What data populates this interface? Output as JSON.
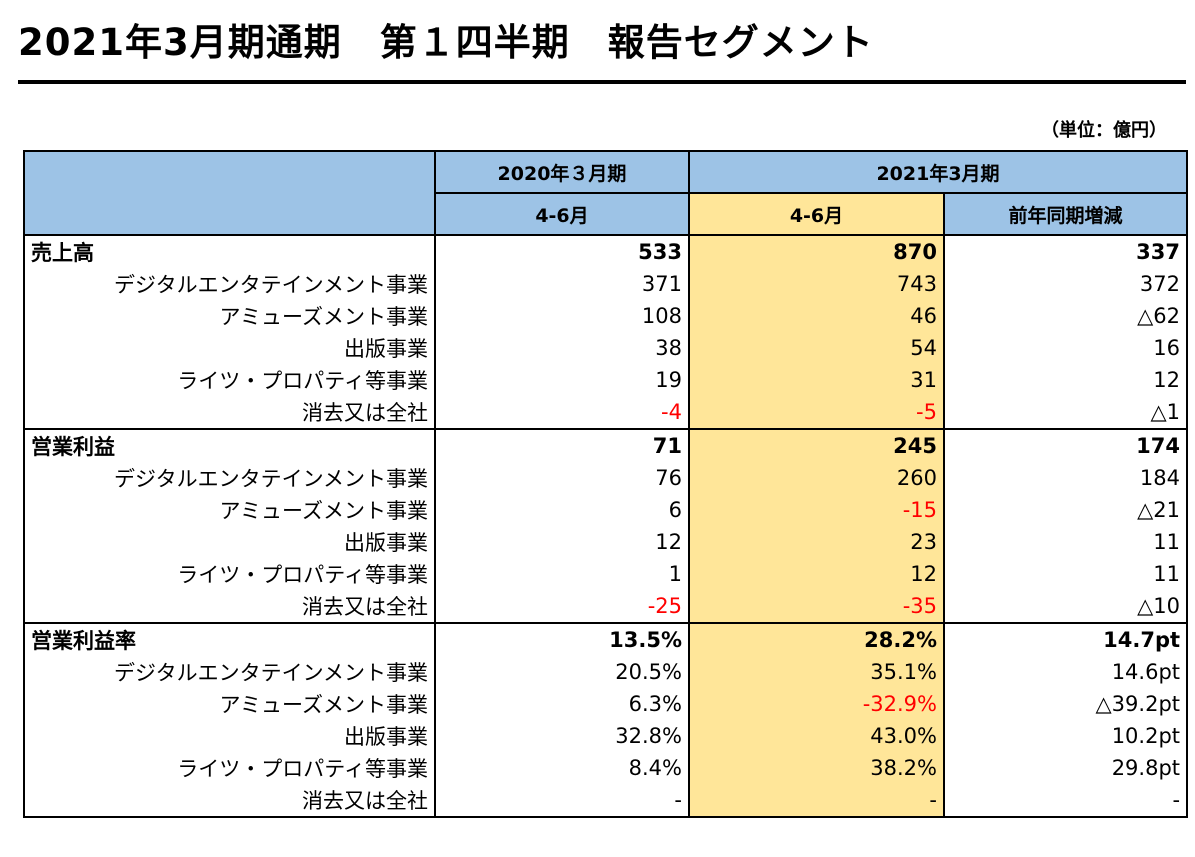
{
  "title": "2021年3月期通期　第１四半期　報告セグメント",
  "unit": "（単位：億円）",
  "header": {
    "period_prev": "2020年３月期",
    "period_curr": "2021年3月期",
    "q_prev": "4-6月",
    "q_curr": "4-6月",
    "yoy": "前年同期増減"
  },
  "sections": [
    {
      "label": "売上高",
      "total": {
        "prev": "533",
        "curr": "870",
        "diff": "337"
      },
      "rows": [
        {
          "label": "デジタルエンタテインメント事業",
          "prev": "371",
          "curr": "743",
          "diff": "372"
        },
        {
          "label": "アミューズメント事業",
          "prev": "108",
          "curr": "46",
          "diff": "△62"
        },
        {
          "label": "出版事業",
          "prev": "38",
          "curr": "54",
          "diff": "16"
        },
        {
          "label": "ライツ・プロパティ等事業",
          "prev": "19",
          "curr": "31",
          "diff": "12"
        },
        {
          "label": "消去又は全社",
          "prev": "-4",
          "curr": "-5",
          "diff": "△1"
        }
      ]
    },
    {
      "label": "営業利益",
      "total": {
        "prev": "71",
        "curr": "245",
        "diff": "174"
      },
      "rows": [
        {
          "label": "デジタルエンタテインメント事業",
          "prev": "76",
          "curr": "260",
          "diff": "184"
        },
        {
          "label": "アミューズメント事業",
          "prev": "6",
          "curr": "-15",
          "diff": "△21"
        },
        {
          "label": "出版事業",
          "prev": "12",
          "curr": "23",
          "diff": "11"
        },
        {
          "label": "ライツ・プロパティ等事業",
          "prev": "1",
          "curr": "12",
          "diff": "11"
        },
        {
          "label": "消去又は全社",
          "prev": "-25",
          "curr": "-35",
          "diff": "△10"
        }
      ]
    },
    {
      "label": "営業利益率",
      "total": {
        "prev": "13.5%",
        "curr": "28.2%",
        "diff": "14.7pt"
      },
      "rows": [
        {
          "label": "デジタルエンタテインメント事業",
          "prev": "20.5%",
          "curr": "35.1%",
          "diff": "14.6pt"
        },
        {
          "label": "アミューズメント事業",
          "prev": "6.3%",
          "curr": "-32.9%",
          "diff": "△39.2pt"
        },
        {
          "label": "出版事業",
          "prev": "32.8%",
          "curr": "43.0%",
          "diff": "10.2pt"
        },
        {
          "label": "ライツ・プロパティ等事業",
          "prev": "8.4%",
          "curr": "38.2%",
          "diff": "29.8pt"
        },
        {
          "label": "消去又は全社",
          "prev": "-",
          "curr": "-",
          "diff": "-"
        }
      ]
    }
  ],
  "colors": {
    "header_blue": "#9dc3e6",
    "highlight_yellow": "#ffe699",
    "negative_red": "#ff0000"
  }
}
